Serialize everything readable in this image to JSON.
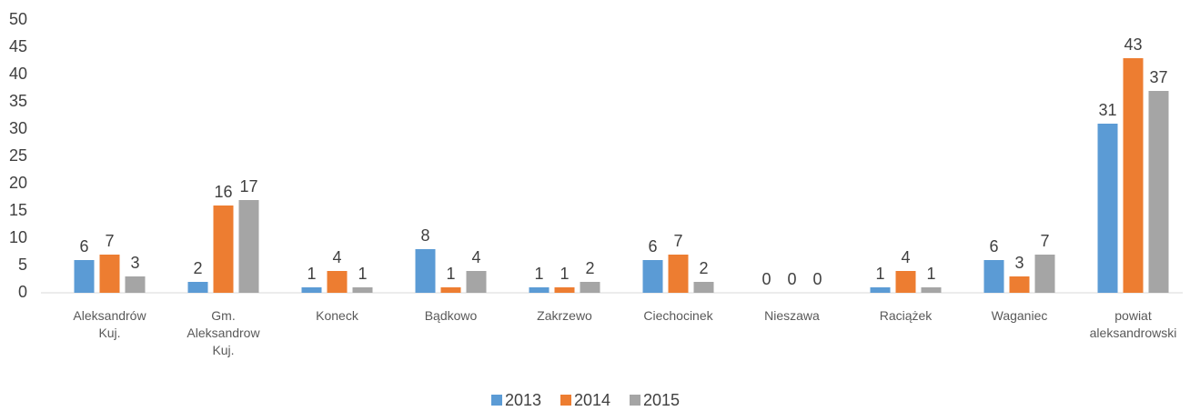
{
  "chart_data": {
    "type": "bar",
    "categories": [
      "Aleksandrów Kuj.",
      "Gm. Aleksandrow Kuj.",
      "Koneck",
      "Bądkowo",
      "Zakrzewo",
      "Ciechocinek",
      "Nieszawa",
      "Raciążek",
      "Waganiec",
      "powiat aleksandrowski"
    ],
    "series": [
      {
        "name": "2013",
        "color": "#5b9bd5",
        "values": [
          6,
          2,
          1,
          8,
          1,
          6,
          0,
          1,
          6,
          31
        ]
      },
      {
        "name": "2014",
        "color": "#ed7d31",
        "values": [
          7,
          16,
          4,
          1,
          1,
          7,
          0,
          4,
          3,
          43
        ]
      },
      {
        "name": "2015",
        "color": "#a5a5a5",
        "values": [
          3,
          17,
          1,
          4,
          2,
          2,
          0,
          1,
          7,
          37
        ]
      }
    ],
    "ylim": [
      0,
      50
    ],
    "yticks": [
      0,
      5,
      10,
      15,
      20,
      25,
      30,
      35,
      40,
      45,
      50
    ],
    "grid": false,
    "legend": "bottom"
  }
}
